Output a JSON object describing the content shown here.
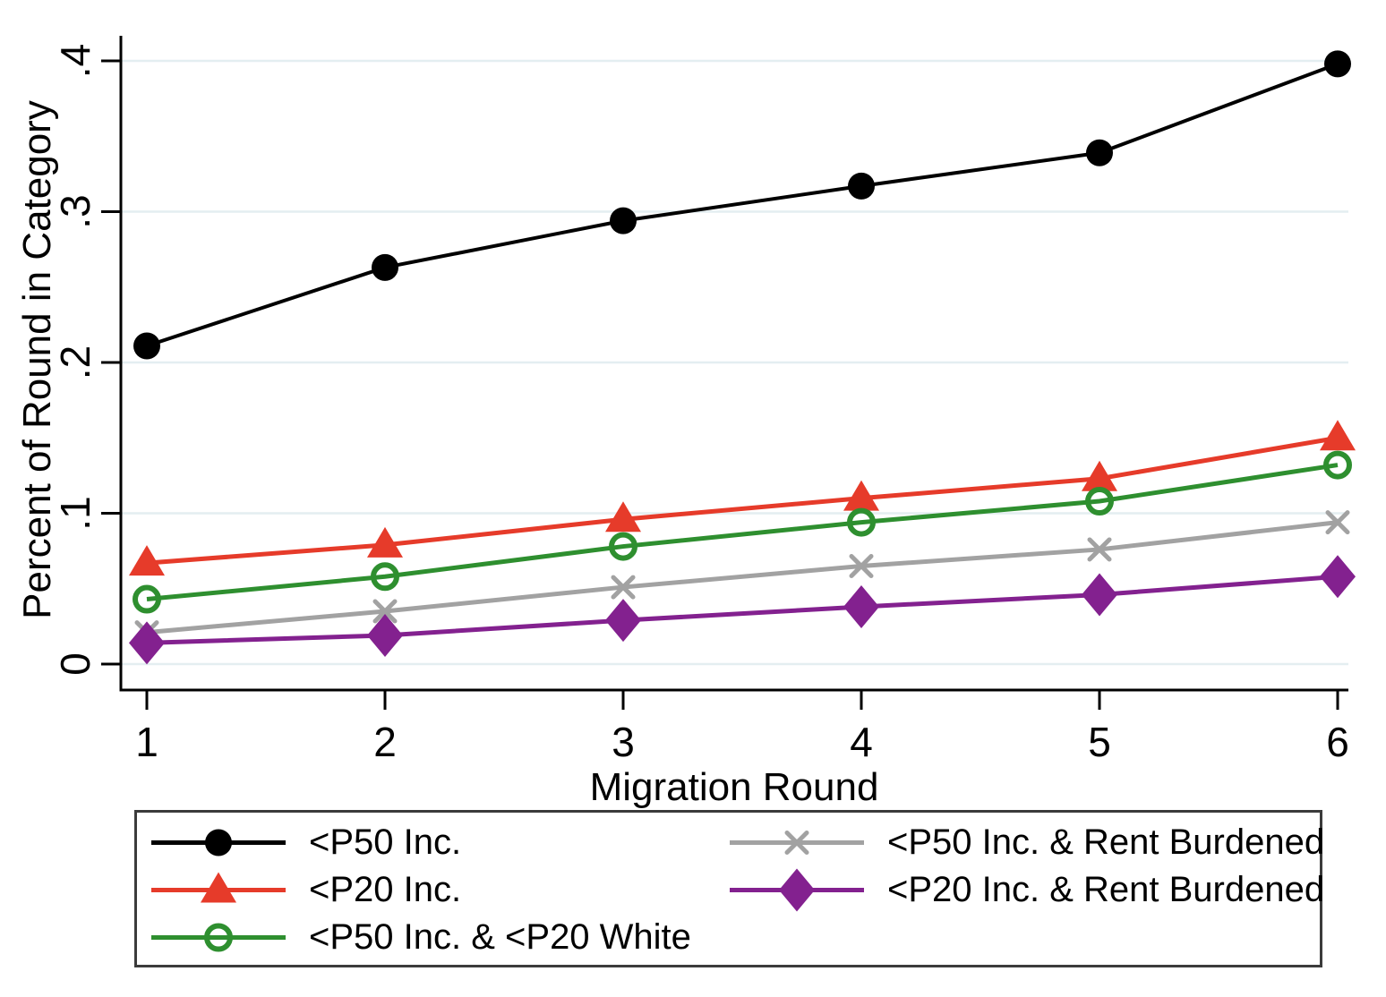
{
  "chart_data": {
    "type": "line",
    "x": [
      1,
      2,
      3,
      4,
      5,
      6
    ],
    "xlabel": "Migration Round",
    "ylabel": "Percent of Round in Category",
    "xlim": [
      1,
      6
    ],
    "ylim": [
      0,
      0.42
    ],
    "xticks": [
      "1",
      "2",
      "3",
      "4",
      "5",
      "6"
    ],
    "yticks": [
      {
        "v": 0.0,
        "label": "0"
      },
      {
        "v": 0.1,
        "label": ".1"
      },
      {
        "v": 0.2,
        "label": ".2"
      },
      {
        "v": 0.3,
        "label": ".3"
      },
      {
        "v": 0.4,
        "label": ".4"
      }
    ],
    "grid": true,
    "legend_position": "bottom",
    "series": [
      {
        "name": "<P50 Inc.",
        "color": "#000000",
        "marker": "circle-filled",
        "values": [
          0.211,
          0.263,
          0.294,
          0.317,
          0.339,
          0.398
        ]
      },
      {
        "name": "<P20 Inc.",
        "color": "#e63b2a",
        "marker": "triangle-filled",
        "values": [
          0.067,
          0.079,
          0.096,
          0.11,
          0.123,
          0.15
        ]
      },
      {
        "name": "<P50 Inc. & <P20 White",
        "color": "#2e8f2f",
        "marker": "circle-open",
        "values": [
          0.043,
          0.058,
          0.078,
          0.094,
          0.108,
          0.132
        ]
      },
      {
        "name": "<P50 Inc. & Rent Burdened",
        "color": "#a2a2a2",
        "marker": "x",
        "values": [
          0.021,
          0.035,
          0.051,
          0.065,
          0.076,
          0.094
        ]
      },
      {
        "name": "<P20 Inc. & Rent Burdened",
        "color": "#83218f",
        "marker": "diamond-filled",
        "values": [
          0.014,
          0.019,
          0.029,
          0.038,
          0.046,
          0.058
        ]
      }
    ]
  },
  "colors": {
    "grid": "#e4eef1",
    "axis": "#000000",
    "legend_border": "#3b3b3b"
  }
}
